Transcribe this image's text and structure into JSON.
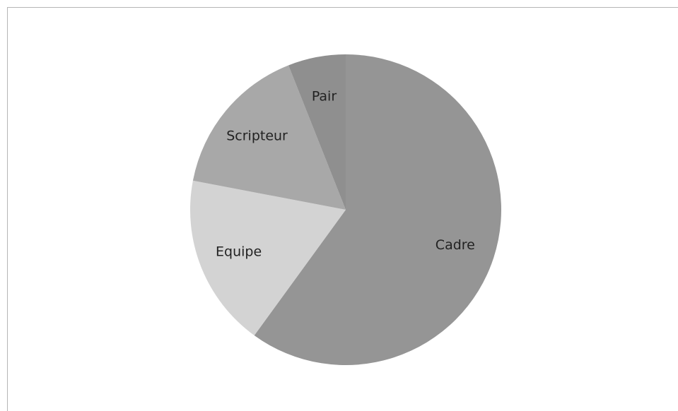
{
  "chart_data": {
    "type": "pie",
    "categories": [
      "Cadre",
      "Equipe",
      "Scripteur",
      "Pair"
    ],
    "values": [
      60,
      18,
      16,
      6
    ],
    "colors": [
      "#959595",
      "#d3d3d3",
      "#a8a8a8",
      "#8f8f8f"
    ]
  }
}
